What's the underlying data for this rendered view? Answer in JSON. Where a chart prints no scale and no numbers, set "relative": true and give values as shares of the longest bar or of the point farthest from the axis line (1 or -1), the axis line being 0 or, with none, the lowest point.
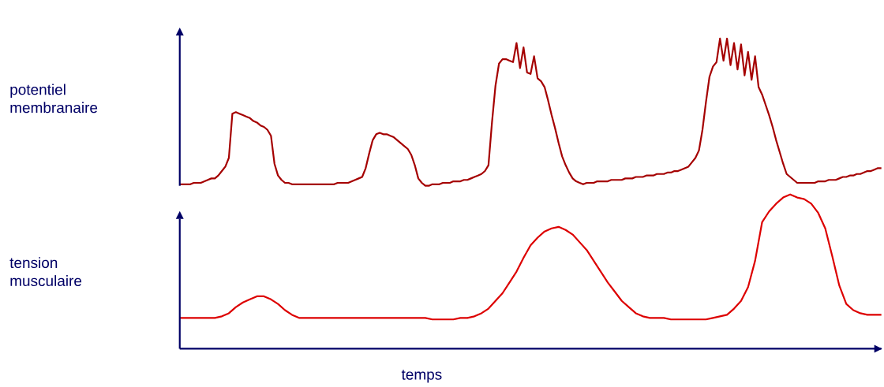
{
  "chart_data": [
    {
      "type": "line",
      "ylabel": "potentiel membranaire",
      "relative": true,
      "color": "#a50000",
      "categories": [
        null,
        null,
        null,
        null,
        null,
        null,
        null,
        null,
        null,
        null,
        null,
        null,
        null,
        null,
        null,
        null,
        null,
        null,
        null,
        null,
        null,
        null,
        null,
        null,
        null,
        null,
        null,
        null,
        null,
        null,
        null,
        null,
        null,
        null,
        null,
        null,
        null,
        null,
        null,
        null,
        null,
        null,
        null,
        null,
        null,
        null,
        null,
        null,
        null,
        null,
        null,
        null,
        null,
        null,
        null,
        null,
        null,
        null,
        null,
        null,
        null,
        null,
        null,
        null,
        null,
        null,
        null,
        null,
        null,
        null,
        null,
        null,
        null,
        null,
        null,
        null,
        null,
        null,
        null,
        null,
        null,
        null,
        null,
        null,
        null,
        null,
        null,
        null,
        null,
        null,
        null,
        null,
        null,
        null,
        null,
        null,
        null,
        null,
        null,
        null,
        null,
        null,
        null,
        null,
        null,
        null,
        null,
        null,
        null,
        null,
        null,
        null,
        null,
        null,
        null,
        null,
        null,
        null,
        null,
        null,
        null,
        null,
        null,
        null,
        null,
        null,
        null,
        null,
        null,
        null,
        null,
        null,
        null,
        null,
        null,
        null,
        null,
        null,
        null,
        null,
        null,
        null,
        null,
        null,
        null,
        null,
        null,
        null,
        null,
        null,
        null,
        null,
        null,
        null,
        null,
        null,
        null,
        null,
        null,
        null,
        null,
        null,
        null,
        null,
        null,
        null,
        null,
        null,
        null,
        null,
        null,
        null,
        null,
        null,
        null,
        null,
        null,
        null,
        null,
        null,
        null,
        null,
        null,
        null,
        null,
        null,
        null,
        null,
        null,
        null,
        null,
        null,
        null,
        null,
        null,
        null,
        null,
        null,
        null,
        null,
        null
      ],
      "values": [
        0.01,
        0.01,
        0.01,
        0.01,
        0.02,
        0.02,
        0.02,
        0.03,
        0.04,
        0.05,
        0.05,
        0.07,
        0.1,
        0.13,
        0.19,
        0.49,
        0.5,
        0.49,
        0.48,
        0.47,
        0.46,
        0.44,
        0.43,
        0.41,
        0.4,
        0.38,
        0.34,
        0.15,
        0.07,
        0.04,
        0.02,
        0.02,
        0.01,
        0.01,
        0.01,
        0.01,
        0.01,
        0.01,
        0.01,
        0.01,
        0.01,
        0.01,
        0.01,
        0.01,
        0.01,
        0.02,
        0.02,
        0.02,
        0.02,
        0.03,
        0.04,
        0.05,
        0.06,
        0.12,
        0.22,
        0.31,
        0.35,
        0.36,
        0.35,
        0.35,
        0.34,
        0.33,
        0.31,
        0.29,
        0.27,
        0.25,
        0.21,
        0.14,
        0.05,
        0.02,
        0,
        0,
        0.01,
        0.01,
        0.01,
        0.02,
        0.02,
        0.02,
        0.03,
        0.03,
        0.03,
        0.04,
        0.04,
        0.05,
        0.06,
        0.07,
        0.08,
        0.1,
        0.14,
        0.43,
        0.68,
        0.83,
        0.86,
        0.86,
        0.85,
        0.84,
        0.97,
        0.8,
        0.94,
        0.77,
        0.76,
        0.88,
        0.73,
        0.71,
        0.67,
        0.58,
        0.48,
        0.39,
        0.29,
        0.2,
        0.14,
        0.09,
        0.05,
        0.03,
        0.02,
        0.01,
        0.02,
        0.02,
        0.02,
        0.03,
        0.03,
        0.03,
        0.03,
        0.04,
        0.04,
        0.04,
        0.04,
        0.05,
        0.05,
        0.05,
        0.06,
        0.06,
        0.06,
        0.07,
        0.07,
        0.07,
        0.08,
        0.08,
        0.08,
        0.09,
        0.09,
        0.1,
        0.1,
        0.11,
        0.12,
        0.13,
        0.16,
        0.19,
        0.24,
        0.38,
        0.57,
        0.74,
        0.81,
        0.84,
        1.0,
        0.85,
        1.0,
        0.82,
        0.97,
        0.79,
        0.96,
        0.75,
        0.91,
        0.72,
        0.88,
        0.67,
        0.62,
        0.55,
        0.48,
        0.4,
        0.31,
        0.23,
        0.15,
        0.08,
        0.06,
        0.04,
        0.02,
        0.02,
        0.02,
        0.02,
        0.02,
        0.02,
        0.03,
        0.03,
        0.03,
        0.04,
        0.04,
        0.04,
        0.05,
        0.06,
        0.06,
        0.07,
        0.07,
        0.08,
        0.08,
        0.09,
        0.1,
        0.1,
        0.11,
        0.12,
        0.12
      ]
    },
    {
      "type": "line",
      "ylabel": "tension musculaire",
      "xlabel": "temps",
      "relative": true,
      "color": "#dd0000",
      "categories": [
        null,
        null,
        null,
        null,
        null,
        null,
        null,
        null,
        null,
        null,
        null,
        null,
        null,
        null,
        null,
        null,
        null,
        null,
        null,
        null,
        null,
        null,
        null,
        null,
        null,
        null,
        null,
        null,
        null,
        null,
        null,
        null,
        null,
        null,
        null,
        null,
        null,
        null,
        null,
        null,
        null,
        null,
        null,
        null,
        null,
        null,
        null,
        null,
        null,
        null,
        null,
        null,
        null,
        null,
        null,
        null,
        null,
        null,
        null,
        null,
        null,
        null,
        null,
        null,
        null,
        null,
        null,
        null,
        null,
        null,
        null,
        null,
        null,
        null,
        null,
        null,
        null,
        null,
        null,
        null,
        null,
        null,
        null,
        null,
        null,
        null,
        null,
        null,
        null,
        null,
        null,
        null,
        null,
        null,
        null,
        null,
        null,
        null,
        null,
        null,
        null
      ],
      "values": [
        0.2,
        0.2,
        0.2,
        0.2,
        0.2,
        0.2,
        0.21,
        0.23,
        0.27,
        0.3,
        0.32,
        0.34,
        0.34,
        0.32,
        0.29,
        0.25,
        0.22,
        0.2,
        0.2,
        0.2,
        0.2,
        0.2,
        0.2,
        0.2,
        0.2,
        0.2,
        0.2,
        0.2,
        0.2,
        0.2,
        0.2,
        0.2,
        0.2,
        0.2,
        0.2,
        0.2,
        0.19,
        0.19,
        0.19,
        0.19,
        0.2,
        0.2,
        0.21,
        0.23,
        0.26,
        0.31,
        0.36,
        0.43,
        0.5,
        0.59,
        0.67,
        0.72,
        0.76,
        0.78,
        0.79,
        0.77,
        0.74,
        0.69,
        0.64,
        0.57,
        0.5,
        0.43,
        0.37,
        0.31,
        0.27,
        0.23,
        0.21,
        0.2,
        0.2,
        0.2,
        0.19,
        0.19,
        0.19,
        0.19,
        0.19,
        0.19,
        0.2,
        0.21,
        0.22,
        0.26,
        0.31,
        0.4,
        0.57,
        0.82,
        0.89,
        0.94,
        0.98,
        1.0,
        0.98,
        0.97,
        0.94,
        0.88,
        0.78,
        0.6,
        0.41,
        0.29,
        0.25,
        0.23,
        0.22,
        0.22,
        0.22
      ]
    }
  ]
}
